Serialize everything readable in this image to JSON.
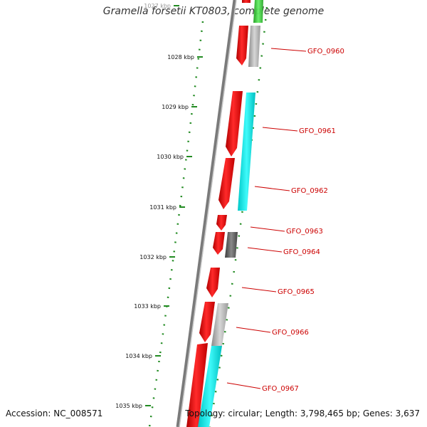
{
  "title": "Gramella forsetii KT0803, complete genome",
  "footer": {
    "accession": "Accession: NC_008571",
    "summary": "Topology: circular; Length: 3,798,465 bp; Genes: 3,637"
  },
  "ticks": [
    {
      "label": "1027 kbp"
    },
    {
      "label": "1028 kbp"
    },
    {
      "label": "1029 kbp"
    },
    {
      "label": "1030 kbp"
    },
    {
      "label": "1031 kbp"
    },
    {
      "label": "1032 kbp"
    },
    {
      "label": "1033 kbp"
    },
    {
      "label": "1034 kbp"
    },
    {
      "label": "1035 kbp"
    }
  ],
  "genes": [
    {
      "label": "GFO_0960"
    },
    {
      "label": "GFO_0961"
    },
    {
      "label": "GFO_0962"
    },
    {
      "label": "GFO_0963"
    },
    {
      "label": "GFO_0964"
    },
    {
      "label": "GFO_0965"
    },
    {
      "label": "GFO_0966"
    },
    {
      "label": "GFO_0967"
    }
  ],
  "colors": {
    "cds": "#ff0000",
    "cog_cyan": "#00ffff",
    "cog_grey": "#b0b0b0",
    "cog_dark": "#666666",
    "cog_green": "#33cc33",
    "backbone": "#888888",
    "ruler": "#228b22",
    "label": "#cc0000"
  }
}
